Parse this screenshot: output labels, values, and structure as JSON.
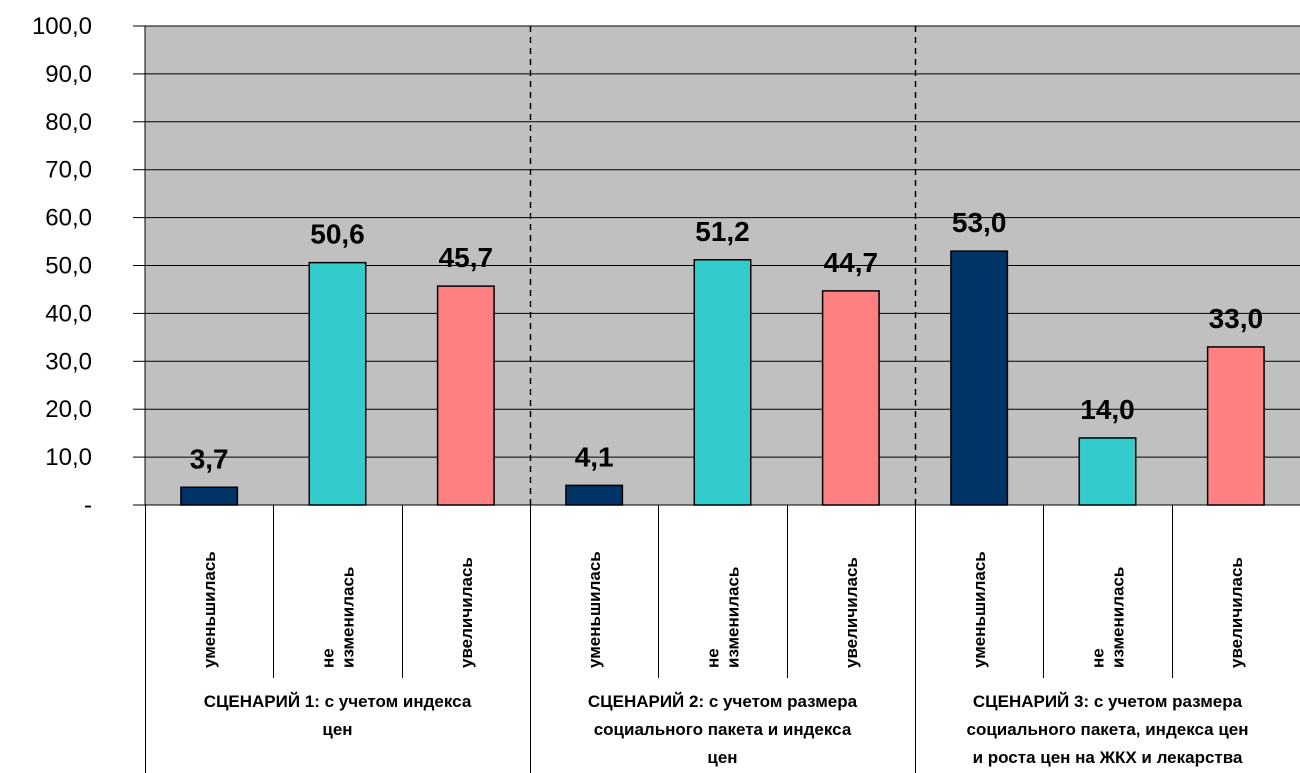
{
  "chart_data": {
    "type": "bar",
    "ylim": [
      0,
      100
    ],
    "y_ticks": [
      "-",
      "10,0",
      "20,0",
      "30,0",
      "40,0",
      "50,0",
      "60,0",
      "70,0",
      "80,0",
      "90,0",
      "100,0"
    ],
    "grid": true,
    "colors": {
      "plot_bg": "#c0c0c0",
      "decreased": "#003366",
      "unchanged": "#33cccc",
      "increased": "#ff8080"
    },
    "groups": [
      {
        "label_lines": [
          "СЦЕНАРИЙ 1: с учетом индекса",
          "цен"
        ],
        "bars": [
          {
            "category_lines": [
              "уменьшилась"
            ],
            "value": 3.7,
            "label": "3,7",
            "color_key": "decreased"
          },
          {
            "category_lines": [
              "не",
              "изменилась"
            ],
            "value": 50.6,
            "label": "50,6",
            "color_key": "unchanged"
          },
          {
            "category_lines": [
              "увеличилась"
            ],
            "value": 45.7,
            "label": "45,7",
            "color_key": "increased"
          }
        ]
      },
      {
        "label_lines": [
          "СЦЕНАРИЙ 2: с учетом размера",
          "социального пакета и индекса",
          "цен"
        ],
        "bars": [
          {
            "category_lines": [
              "уменьшилась"
            ],
            "value": 4.1,
            "label": "4,1",
            "color_key": "decreased"
          },
          {
            "category_lines": [
              "не",
              "изменилась"
            ],
            "value": 51.2,
            "label": "51,2",
            "color_key": "unchanged"
          },
          {
            "category_lines": [
              "увеличилась"
            ],
            "value": 44.7,
            "label": "44,7",
            "color_key": "increased"
          }
        ]
      },
      {
        "label_lines": [
          "СЦЕНАРИЙ 3: с учетом размера",
          "социального пакета, индекса цен",
          "и роста цен на ЖКХ и лекарства"
        ],
        "bars": [
          {
            "category_lines": [
              "уменьшилась"
            ],
            "value": 53.0,
            "label": "53,0",
            "color_key": "decreased"
          },
          {
            "category_lines": [
              "не",
              "изменилась"
            ],
            "value": 14.0,
            "label": "14,0",
            "color_key": "unchanged"
          },
          {
            "category_lines": [
              "увеличилась"
            ],
            "value": 33.0,
            "label": "33,0",
            "color_key": "increased"
          }
        ]
      }
    ]
  }
}
